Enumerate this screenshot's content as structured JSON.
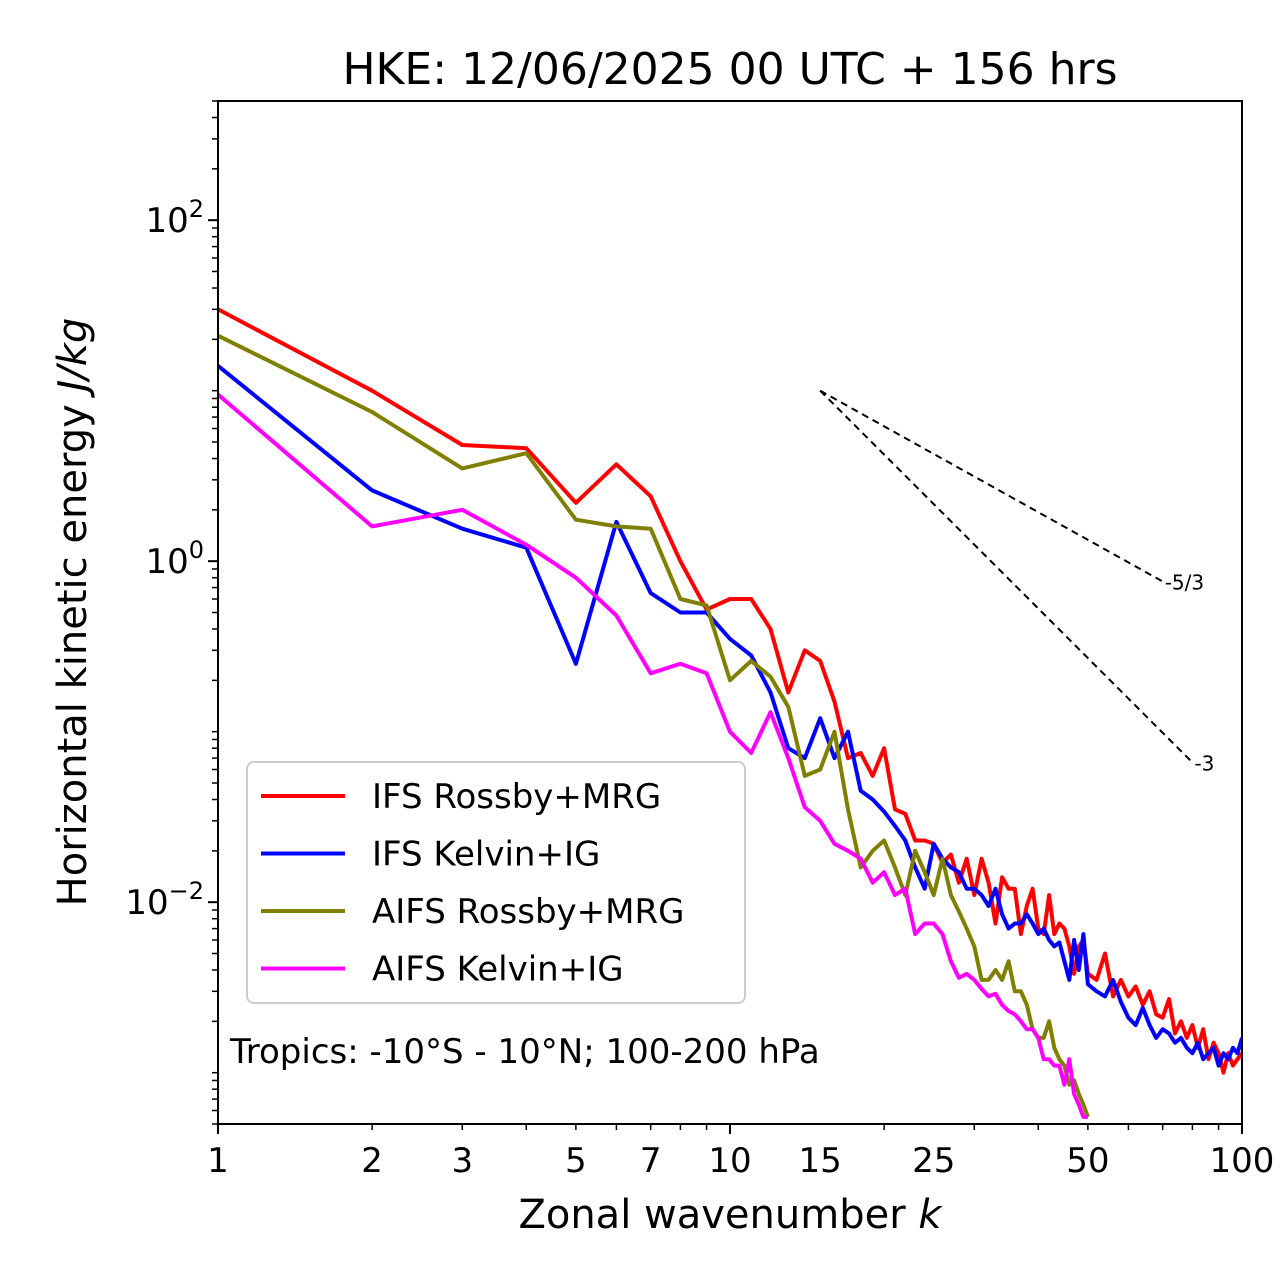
{
  "chart_data": {
    "type": "line",
    "title": "HKE: 12/06/2025 00 UTC + 156 hrs",
    "xlabel": {
      "prefix": "Zonal wavenumber ",
      "italic": "k"
    },
    "ylabel": {
      "prefix": "Horizontal kinetic energy ",
      "italic": "J/kg"
    },
    "xscale": "log",
    "yscale": "log",
    "xlim": [
      1,
      100
    ],
    "ylim": [
      0.0005,
      500
    ],
    "grid": false,
    "x_ticks": [
      {
        "value": 1,
        "label": "1"
      },
      {
        "value": 2,
        "label": "2"
      },
      {
        "value": 3,
        "label": "3"
      },
      {
        "value": 5,
        "label": "5"
      },
      {
        "value": 7,
        "label": "7"
      },
      {
        "value": 10,
        "label": "10"
      },
      {
        "value": 15,
        "label": "15"
      },
      {
        "value": 25,
        "label": "25"
      },
      {
        "value": 50,
        "label": "50"
      },
      {
        "value": 100,
        "label": "100"
      }
    ],
    "y_ticks": [
      {
        "value": 100,
        "base": "10",
        "exp": "2"
      },
      {
        "value": 1,
        "base": "10",
        "exp": "0"
      },
      {
        "value": 0.01,
        "base": "10",
        "exp": "−2"
      }
    ],
    "annotation": "Tropics: -10°S - 10°N; 100-200 hPa",
    "reference_lines": [
      {
        "label": "-5/3",
        "x": [
          15,
          70
        ],
        "y": [
          10,
          0.76
        ]
      },
      {
        "label": "-3",
        "x": [
          15,
          80
        ],
        "y": [
          10,
          0.066
        ]
      }
    ],
    "legend_position": "lower-left",
    "series": [
      {
        "name": "IFS Rossby+MRG",
        "color": "#ff0000",
        "x": [
          1,
          2,
          3,
          4,
          5,
          6,
          7,
          8,
          9,
          10,
          11,
          12,
          13,
          14,
          15,
          16,
          17,
          18,
          19,
          20,
          21,
          22,
          23,
          24,
          25,
          26,
          27,
          28,
          29,
          30,
          31,
          32,
          33,
          34,
          35,
          36,
          37,
          38,
          39,
          40,
          41,
          42,
          43,
          44,
          45,
          46,
          47,
          48,
          49,
          50,
          52,
          54,
          56,
          58,
          60,
          62,
          64,
          66,
          68,
          70,
          72,
          74,
          76,
          78,
          80,
          82,
          84,
          86,
          88,
          90,
          92,
          94,
          96,
          98,
          100
        ],
        "y": [
          30,
          10,
          4.8,
          4.6,
          2.2,
          3.7,
          2.4,
          1.0,
          0.52,
          0.6,
          0.6,
          0.4,
          0.17,
          0.3,
          0.26,
          0.15,
          0.07,
          0.075,
          0.055,
          0.08,
          0.035,
          0.033,
          0.023,
          0.023,
          0.022,
          0.017,
          0.019,
          0.013,
          0.018,
          0.011,
          0.018,
          0.013,
          0.0075,
          0.014,
          0.012,
          0.012,
          0.0065,
          0.0095,
          0.012,
          0.007,
          0.0065,
          0.011,
          0.0065,
          0.0075,
          0.007,
          0.0055,
          0.0038,
          0.0055,
          0.006,
          0.0038,
          0.0035,
          0.005,
          0.0028,
          0.0035,
          0.0028,
          0.0032,
          0.0025,
          0.003,
          0.0022,
          0.0021,
          0.0027,
          0.0017,
          0.002,
          0.0016,
          0.0019,
          0.0014,
          0.0018,
          0.0012,
          0.0015,
          0.0013,
          0.001,
          0.0013,
          0.0011,
          0.0012,
          0.0013
        ]
      },
      {
        "name": "IFS Kelvin+IG",
        "color": "#0000ff",
        "x": [
          1,
          2,
          3,
          4,
          5,
          6,
          7,
          8,
          9,
          10,
          11,
          12,
          13,
          14,
          15,
          16,
          17,
          18,
          19,
          20,
          21,
          22,
          23,
          24,
          25,
          26,
          27,
          28,
          29,
          30,
          31,
          32,
          33,
          34,
          35,
          36,
          37,
          38,
          39,
          40,
          41,
          42,
          43,
          44,
          45,
          46,
          47,
          48,
          49,
          50,
          52,
          54,
          56,
          58,
          60,
          62,
          64,
          66,
          68,
          70,
          72,
          74,
          76,
          78,
          80,
          82,
          84,
          86,
          88,
          90,
          92,
          94,
          96,
          98,
          100
        ],
        "y": [
          14,
          2.6,
          1.55,
          1.2,
          0.25,
          1.7,
          0.65,
          0.5,
          0.5,
          0.35,
          0.28,
          0.17,
          0.08,
          0.07,
          0.12,
          0.07,
          0.1,
          0.045,
          0.04,
          0.034,
          0.028,
          0.023,
          0.016,
          0.012,
          0.022,
          0.018,
          0.016,
          0.015,
          0.012,
          0.012,
          0.011,
          0.0095,
          0.012,
          0.0085,
          0.007,
          0.0075,
          0.0075,
          0.0085,
          0.0075,
          0.0065,
          0.007,
          0.006,
          0.0055,
          0.0058,
          0.0045,
          0.0035,
          0.006,
          0.004,
          0.0065,
          0.0033,
          0.003,
          0.0028,
          0.0035,
          0.0026,
          0.0021,
          0.0019,
          0.0024,
          0.0019,
          0.0016,
          0.0018,
          0.0017,
          0.0015,
          0.0016,
          0.0014,
          0.0013,
          0.0015,
          0.0012,
          0.0013,
          0.0014,
          0.0011,
          0.0013,
          0.0012,
          0.0014,
          0.0013,
          0.0016
        ]
      },
      {
        "name": "AIFS Rossby+MRG",
        "color": "#808000",
        "x": [
          1,
          2,
          3,
          4,
          5,
          6,
          7,
          8,
          9,
          10,
          11,
          12,
          13,
          14,
          15,
          16,
          17,
          18,
          19,
          20,
          21,
          22,
          23,
          24,
          25,
          26,
          27,
          28,
          29,
          30,
          31,
          32,
          33,
          34,
          35,
          36,
          37,
          38,
          39,
          40,
          41,
          42,
          43,
          44,
          45,
          46,
          47,
          48,
          49,
          50
        ],
        "y": [
          21,
          7.5,
          3.5,
          4.3,
          1.75,
          1.6,
          1.55,
          0.6,
          0.55,
          0.2,
          0.26,
          0.21,
          0.14,
          0.055,
          0.06,
          0.1,
          0.035,
          0.016,
          0.02,
          0.023,
          0.016,
          0.011,
          0.02,
          0.015,
          0.011,
          0.018,
          0.011,
          0.0088,
          0.007,
          0.0055,
          0.0035,
          0.0035,
          0.004,
          0.0035,
          0.0045,
          0.003,
          0.003,
          0.0025,
          0.0018,
          0.0016,
          0.0016,
          0.002,
          0.0014,
          0.0012,
          0.0011,
          0.00085,
          0.0009,
          0.00075,
          0.00065,
          0.00055
        ]
      },
      {
        "name": "AIFS Kelvin+IG",
        "color": "#ff00ff",
        "x": [
          1,
          2,
          3,
          4,
          5,
          6,
          7,
          8,
          9,
          10,
          11,
          12,
          13,
          14,
          15,
          16,
          17,
          18,
          19,
          20,
          21,
          22,
          23,
          24,
          25,
          26,
          27,
          28,
          29,
          30,
          31,
          32,
          33,
          34,
          35,
          36,
          37,
          38,
          39,
          40,
          41,
          42,
          43,
          44,
          45,
          46,
          47,
          48,
          49,
          50
        ],
        "y": [
          9.5,
          1.6,
          2.0,
          1.25,
          0.8,
          0.48,
          0.22,
          0.25,
          0.22,
          0.1,
          0.075,
          0.13,
          0.07,
          0.036,
          0.03,
          0.022,
          0.02,
          0.018,
          0.013,
          0.015,
          0.011,
          0.012,
          0.0065,
          0.0075,
          0.0075,
          0.0065,
          0.0045,
          0.0036,
          0.0038,
          0.0035,
          0.0031,
          0.0028,
          0.0029,
          0.0025,
          0.0023,
          0.0022,
          0.002,
          0.0018,
          0.0018,
          0.0016,
          0.0012,
          0.0012,
          0.0011,
          0.0011,
          0.00085,
          0.0012,
          0.00075,
          0.00065,
          0.00055,
          0.00055
        ]
      }
    ]
  }
}
